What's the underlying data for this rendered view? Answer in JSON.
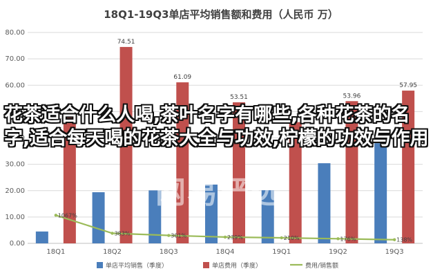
{
  "chart_data": {
    "type": "bar",
    "title": "18Q1-19Q3单店平均销售额和费用（人民币 万）",
    "categories": [
      "18Q1",
      "18Q2",
      "18Q3",
      "18Q4",
      "19Q1",
      "19Q2",
      "19Q3"
    ],
    "ylim": [
      0,
      80
    ],
    "yticks": [
      "0.00",
      "10.00",
      "20.00",
      "30.00",
      "40.00",
      "50.00",
      "60.00",
      "70.00",
      "80.00"
    ],
    "series": [
      {
        "name": "单店平均销售（季度）",
        "type": "bar",
        "color": "#4a7ebb",
        "values": [
          4.5,
          19.4,
          20.1,
          22.3,
          20.2,
          30.4,
          38.0
        ]
      },
      {
        "name": "单店费用（季度）",
        "type": "bar",
        "color": "#c0504d",
        "values": [
          47.63,
          74.51,
          61.09,
          53.51,
          46.0,
          53.96,
          57.95
        ],
        "labels": [
          "47.63",
          "74.51",
          "61.09",
          "53.51",
          "",
          "53.96",
          "57.95"
        ]
      },
      {
        "name": "费用/销售额",
        "type": "line",
        "color": "#9bbb59",
        "values": [
          10.67,
          3.83,
          3.01,
          2.39,
          2.1,
          1.76,
          1.38
        ],
        "labels": [
          "1067%",
          "383%",
          "301%",
          "239%",
          "210%",
          "176%",
          "138%"
        ]
      }
    ],
    "grid": true,
    "legend": "bottom"
  },
  "overlay_text": "花茶适合什么人喝,茶叶名字有哪些,各种花茶的名字,适合每天喝的花茶大全与功效,柠檬的功效与作用",
  "watermark": "网易严选"
}
